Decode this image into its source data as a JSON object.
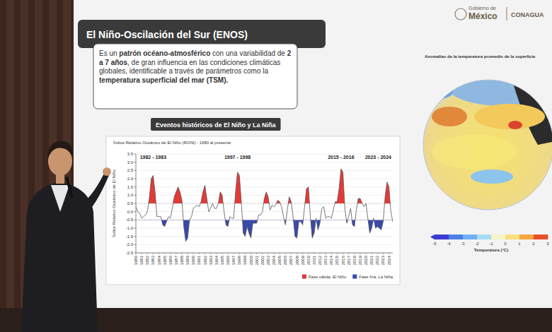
{
  "slide": {
    "title": "El Niño-Oscilación del Sur (ENOS)",
    "description": [
      {
        "text": "Es un ",
        "bold": false
      },
      {
        "text": "patrón océano-atmosférico",
        "bold": true
      },
      {
        "text": " con una variabilidad de ",
        "bold": false
      },
      {
        "text": "2 a 7 años",
        "bold": true
      },
      {
        "text": ", de gran influencia en las condiciones climáticas globales, identificable a través de parámetros como la ",
        "bold": false
      },
      {
        "text": "temperatura superficial del mar (TSM).",
        "bold": true
      }
    ],
    "section": "Eventos históricos de El Niño y La Niña",
    "logo": [
      "Gobierno de",
      "México",
      "CONAGUA"
    ]
  },
  "map": {
    "title": "Anomalías de la temperatura promedio de la superficie",
    "colorbar_ticks": [
      -5,
      -4,
      -3,
      -2,
      -1,
      0,
      1,
      2,
      3
    ],
    "colorbar_colors": [
      "#3b3bd0",
      "#4f7ee8",
      "#6fb0f0",
      "#a8dcf5",
      "#f5f5c8",
      "#f7e07a",
      "#f5a640",
      "#e8502a"
    ],
    "colorbar_title": "Temperatura (°C)"
  },
  "chart_data": {
    "type": "line",
    "title": "Índice Relativo Oceánico de El Niño (RONI) - 1980 al presente",
    "y_label": "Índice Relativo Oceánico de El Niño",
    "categories": [
      "1980",
      null,
      null,
      "1981",
      null,
      null,
      "1982",
      null,
      null,
      "1983",
      null,
      null,
      "1984",
      null,
      null,
      "1985",
      null,
      null,
      "1986",
      null,
      null,
      "1987",
      null,
      null,
      "1988",
      null,
      null,
      "1989",
      null,
      null,
      "1990",
      null,
      null,
      "1991",
      null,
      null,
      "1992",
      null,
      null,
      "1993",
      null,
      null,
      "1994",
      null,
      null,
      "1995",
      null,
      null,
      "1996",
      null,
      null,
      "1997",
      null,
      null,
      "1998",
      null,
      null,
      "1999",
      null,
      null,
      "2000",
      null,
      null,
      "2001",
      null,
      null,
      "2002",
      null,
      null,
      "2003",
      null,
      null,
      "2004",
      null,
      null,
      "2005",
      null,
      null,
      "2006",
      null,
      null,
      "2007",
      null,
      null,
      "2008",
      null,
      null,
      "2009",
      null,
      null,
      "2010",
      null,
      null,
      "2011",
      null,
      null,
      "2012",
      null,
      null,
      "2013",
      null,
      null,
      "2014",
      null,
      null,
      "2015",
      null,
      null,
      "2016",
      null,
      null,
      "2017",
      null,
      null,
      "2018",
      null,
      null,
      "2019",
      null,
      null,
      "2020",
      null,
      null,
      "2021",
      null,
      null,
      "2022",
      null,
      null,
      "2023",
      null,
      null,
      "2024",
      null,
      null
    ],
    "values": [
      0.3,
      0.0,
      -0.1,
      -0.4,
      -0.3,
      -0.2,
      0.0,
      0.8,
      2.0,
      2.2,
      1.2,
      -0.3,
      -0.3,
      -0.3,
      -0.8,
      -0.9,
      -0.6,
      -0.3,
      -0.4,
      0.2,
      0.9,
      1.2,
      1.5,
      1.2,
      0.7,
      -0.9,
      -1.8,
      -1.6,
      -0.5,
      -0.3,
      0.2,
      0.3,
      0.4,
      0.3,
      0.6,
      1.2,
      1.6,
      0.8,
      0.0,
      0.2,
      0.5,
      0.2,
      0.2,
      0.5,
      1.2,
      1.0,
      0.0,
      -0.8,
      -0.9,
      -0.3,
      -0.4,
      -0.4,
      1.2,
      2.4,
      2.2,
      0.6,
      -1.3,
      -1.5,
      -0.9,
      -1.3,
      -1.6,
      -0.7,
      -0.7,
      -0.7,
      -0.2,
      -0.2,
      0.0,
      0.8,
      1.2,
      0.9,
      0.1,
      0.4,
      0.3,
      0.4,
      0.7,
      0.6,
      0.3,
      -0.3,
      -0.8,
      0.1,
      0.9,
      0.6,
      -0.3,
      -1.5,
      -1.6,
      -0.6,
      -0.6,
      -0.8,
      0.3,
      1.4,
      1.5,
      -0.3,
      -1.6,
      -1.3,
      -0.4,
      -1.1,
      -0.7,
      0.2,
      0.3,
      -0.4,
      -0.3,
      -0.3,
      -0.4,
      0.1,
      0.6,
      0.6,
      1.4,
      2.6,
      2.4,
      0.2,
      -0.7,
      -0.3,
      0.2,
      -0.8,
      -0.9,
      0.1,
      0.8,
      0.8,
      0.5,
      0.3,
      0.5,
      -0.4,
      -1.3,
      -1.0,
      -0.4,
      -1.0,
      -0.9,
      -1.0,
      -1.1,
      -0.6,
      0.9,
      1.8,
      1.5,
      0.0,
      -0.6
    ],
    "color": "#555555",
    "colors": [
      "#e53935",
      "#3949ab"
    ],
    "fill_labels": [
      "Fase cálida: El Niño",
      "Fase fría: La Niña"
    ],
    "thresholds": [
      0.5,
      -0.5
    ],
    "annotations": [
      {
        "text": "1982 - 1983",
        "category": "1983"
      },
      {
        "text": "1997 - 1998",
        "category": "1998"
      },
      {
        "text": "2015 - 2016",
        "category": "2016"
      },
      {
        "text": "2023 - 2024",
        "category": "2024"
      }
    ],
    "ylim": [
      -2.5,
      3.5
    ],
    "yticks": [
      -2.5,
      {
        "value": -2,
        "label": "-2.0"
      },
      -1.5,
      {
        "value": -1,
        "label": "-1.0"
      },
      -0.5,
      {
        "value": 0,
        "label": "0.0"
      },
      0.5,
      {
        "value": 1,
        "label": "1.0"
      },
      1.5,
      {
        "value": 2,
        "label": "2.0"
      },
      2.5,
      {
        "value": 3,
        "label": "3.0"
      },
      3.5
    ],
    "grid": true,
    "legend": "bottom"
  }
}
